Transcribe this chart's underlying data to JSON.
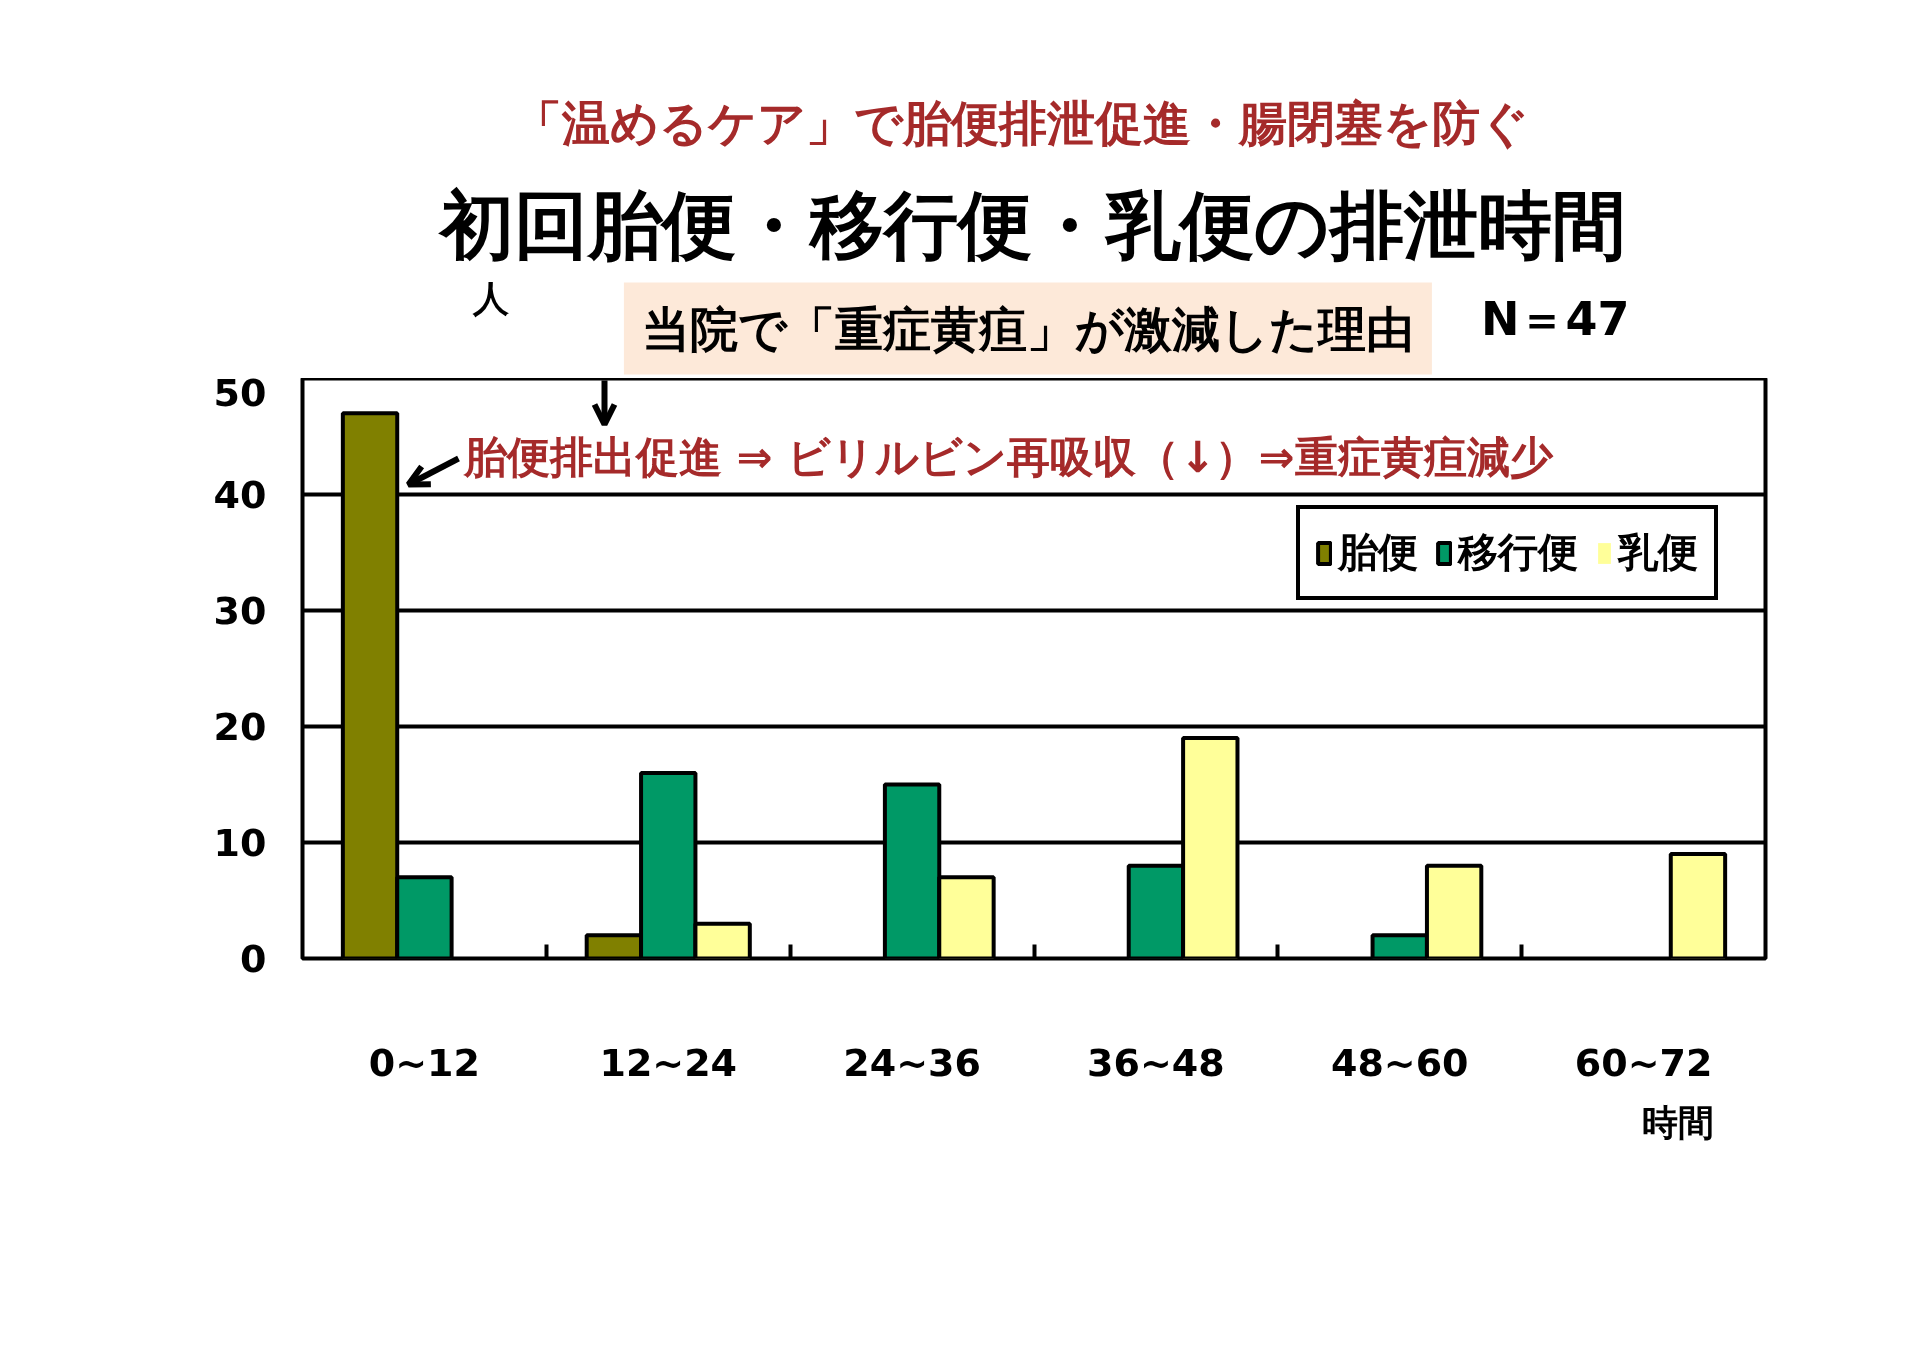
{
  "chart_data": {
    "type": "bar",
    "title": "初回胎便・移行便・乳便の排泄時間",
    "subtitle": "「温めるケア」で胎便排泄促進・腸閉塞を防ぐ",
    "xlabel": "時間",
    "ylabel": "人",
    "categories": [
      "0~12",
      "12~24",
      "24~36",
      "36~48",
      "48~60",
      "60~72"
    ],
    "series": [
      {
        "name": "胎便",
        "color": "#808000",
        "values": [
          47,
          2,
          0,
          0,
          0,
          0
        ]
      },
      {
        "name": "移行便",
        "color": "#009966",
        "values": [
          7,
          16,
          15,
          8,
          2,
          0
        ]
      },
      {
        "name": "乳便",
        "color": "#ffff99",
        "values": [
          0,
          3,
          7,
          19,
          8,
          9
        ]
      }
    ],
    "ylim": [
      0,
      50
    ],
    "yticks": [
      0,
      10,
      20,
      30,
      40,
      50
    ],
    "grid": "y",
    "legend": "top right",
    "annotations": [
      "当院で「重症黄疸」が激減した理由",
      "N＝47",
      "胎便排出促進 ⇒ ビリルビン再吸収（↓）⇒重症黄疸減少"
    ]
  }
}
